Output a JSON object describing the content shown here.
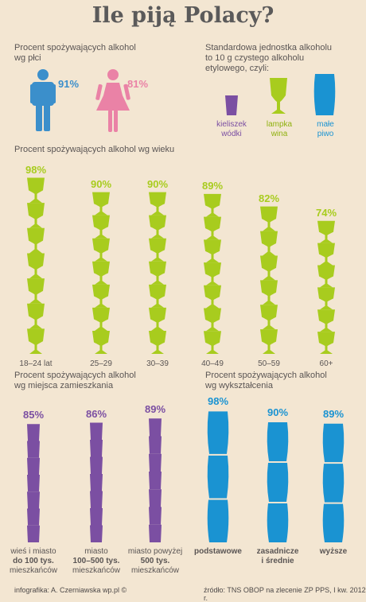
{
  "title": "Ile piją Polacy?",
  "colors": {
    "blue": "#3b8fcb",
    "pink": "#ea82a6",
    "green": "#a8cc1e",
    "purple": "#7b4fa2",
    "cyan": "#1a93d2",
    "text": "#5a5554"
  },
  "gender": {
    "heading": [
      "Procent spożywających alkohol",
      "wg płci"
    ],
    "male_pct": "91%",
    "female_pct": "81%"
  },
  "unit": {
    "heading": [
      "Standardowa jednostka alkoholu",
      "to 10 g czystego alkoholu",
      "etylowego, czyli:"
    ],
    "items": [
      {
        "icon": "shot-glass-icon",
        "label": [
          "kieliszek",
          "wódki"
        ]
      },
      {
        "icon": "wine-glass-icon",
        "label": [
          "lampka",
          "wina"
        ]
      },
      {
        "icon": "beer-glass-icon",
        "label": [
          "małe",
          "piwo"
        ]
      }
    ]
  },
  "age_heading": "Procent spożywających alkohol wg wieku",
  "residence_heading": [
    "Procent spożywających alkohol",
    "wg miejsca zamieszkania"
  ],
  "education_heading": [
    "Procent spożywających alkohol",
    "wg wykształcenia"
  ],
  "chart_data": [
    {
      "type": "bar",
      "title": "Procent spożywających alkohol wg płci",
      "categories": [
        "male",
        "female"
      ],
      "values": [
        91,
        81
      ],
      "unit": "%"
    },
    {
      "type": "bar",
      "title": "Procent spożywających alkohol wg wieku",
      "categories": [
        "18–24 lat",
        "25–29",
        "30–39",
        "40–49",
        "50–59",
        "60+"
      ],
      "values": [
        98,
        90,
        90,
        89,
        82,
        74
      ],
      "value_labels": [
        "98%",
        "90%",
        "90%",
        "89%",
        "82%",
        "74%"
      ],
      "unit": "%"
    },
    {
      "type": "bar",
      "title": "Procent spożywających alkohol wg miejsca zamieszkania",
      "categories": [
        "wieś i miasto do 100 tys. mieszkańców",
        "miasto 100–500 tys. mieszkańców",
        "miasto powyżej 500 tys. mieszkańców"
      ],
      "category_lines": [
        [
          "wieś i miasto",
          "do 100 tys.",
          "mieszkańców"
        ],
        [
          "miasto",
          "100–500 tys.",
          "mieszkańców"
        ],
        [
          "miasto powyżej",
          "500 tys.",
          "mieszkańców"
        ]
      ],
      "values": [
        85,
        86,
        89
      ],
      "value_labels": [
        "85%",
        "86%",
        "89%"
      ],
      "unit": "%"
    },
    {
      "type": "bar",
      "title": "Procent spożywających alkohol wg wykształcenia",
      "categories": [
        "podstawowe",
        "zasadnicze i średnie",
        "wyższe"
      ],
      "category_lines": [
        [
          "podstawowe"
        ],
        [
          "zasadnicze",
          "i średnie"
        ],
        [
          "wyższe"
        ]
      ],
      "values": [
        98,
        90,
        89
      ],
      "value_labels": [
        "98%",
        "90%",
        "89%"
      ],
      "unit": "%"
    }
  ],
  "footer": {
    "left": "infografika: A. Czerniawska wp.pl ©",
    "right": "źródło: TNS OBOP na zlecenie ZP PPS, I kw. 2012 r."
  }
}
